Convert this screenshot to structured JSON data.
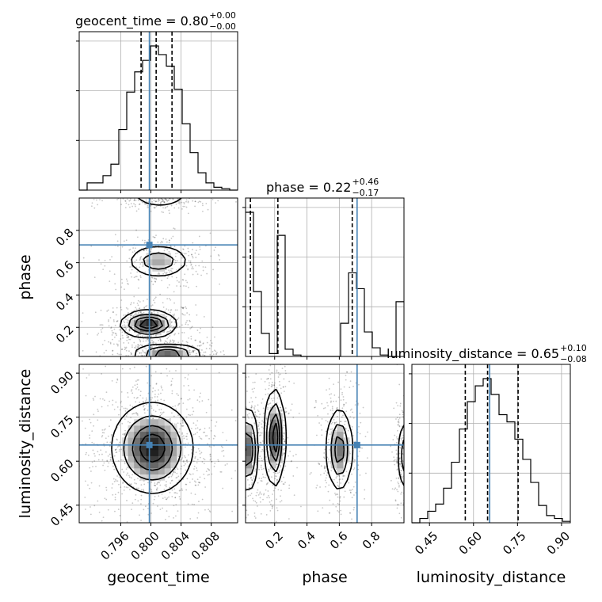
{
  "chart_data": {
    "type": "corner",
    "truth_color": "#4682b4",
    "params": [
      {
        "name": "geocent_time",
        "title_name": "geocent_time",
        "title_value": "0.80",
        "title_plus": "+0.00",
        "title_minus": "−0.00",
        "range": [
          0.7905,
          0.8115
        ],
        "ticks": [
          0.796,
          0.8,
          0.804,
          0.808
        ],
        "tick_labels": [
          "0.796",
          "0.800",
          "0.804",
          "0.808"
        ],
        "truth": 0.7998,
        "quantiles": [
          0.7987,
          0.8007,
          0.8028
        ],
        "hist": {
          "edges_start": 0.7905,
          "bin_width": 0.00105,
          "counts": [
            0,
            0.05,
            0.05,
            0.1,
            0.18,
            0.42,
            0.68,
            0.82,
            0.9,
            1.0,
            0.94,
            0.86,
            0.7,
            0.46,
            0.26,
            0.12,
            0.05,
            0.02,
            0.01,
            0
          ]
        }
      },
      {
        "name": "phase",
        "title_name": "phase",
        "title_value": "0.22",
        "title_plus": "+0.46",
        "title_minus": "−0.17",
        "range": [
          0.02,
          1.0
        ],
        "ticks": [
          0.2,
          0.4,
          0.6,
          0.8
        ],
        "tick_labels": [
          "0.2",
          "0.4",
          "0.6",
          "0.8"
        ],
        "truth": 0.71,
        "quantiles": [
          0.05,
          0.22,
          0.68
        ],
        "hist": {
          "edges_start": 0.02,
          "bin_width": 0.049,
          "counts": [
            1.0,
            0.45,
            0.16,
            0.02,
            0.84,
            0.05,
            0.01,
            0.0,
            0.0,
            0.0,
            0.0,
            0.0,
            0.23,
            0.58,
            0.47,
            0.17,
            0.06,
            0.01,
            0.0,
            0.38
          ]
        }
      },
      {
        "name": "luminosity_distance",
        "title_name": "luminosity_distance",
        "title_value": "0.65",
        "title_plus": "+0.10",
        "title_minus": "−0.08",
        "range": [
          0.39,
          0.93
        ],
        "ticks": [
          0.45,
          0.6,
          0.75,
          0.9
        ],
        "tick_labels": [
          "0.45",
          "0.60",
          "0.75",
          "0.90"
        ],
        "truth": 0.655,
        "quantiles": [
          0.572,
          0.648,
          0.752
        ],
        "hist": {
          "edges_start": 0.39,
          "bin_width": 0.027,
          "counts": [
            0,
            0.03,
            0.08,
            0.13,
            0.24,
            0.42,
            0.65,
            0.84,
            0.95,
            1.0,
            0.89,
            0.75,
            0.7,
            0.58,
            0.44,
            0.28,
            0.12,
            0.05,
            0.03,
            0.01
          ]
        }
      }
    ],
    "pair_ticks_y": {
      "phase": [
        "0.2",
        "0.4",
        "0.6",
        "0.8"
      ],
      "luminosity_distance": [
        "0.45",
        "0.60",
        "0.75",
        "0.90"
      ]
    },
    "density_modes": {
      "phase_vs_geocent_time": [
        {
          "x": 0.7997,
          "y": 0.22,
          "sx": 0.0018,
          "sy": 0.04,
          "w": 1.0
        },
        {
          "x": 0.801,
          "y": 0.61,
          "sx": 0.002,
          "sy": 0.05,
          "w": 0.55
        },
        {
          "x": 0.8022,
          "y": 0.035,
          "sx": 0.0022,
          "sy": 0.03,
          "w": 0.85
        },
        {
          "x": 0.8012,
          "y": 0.99,
          "sx": 0.002,
          "sy": 0.02,
          "w": 0.35
        }
      ],
      "luminosity_distance_vs_geocent_time": [
        {
          "x": 0.8002,
          "y": 0.645,
          "sx": 0.0026,
          "sy": 0.075,
          "w": 1.0
        }
      ],
      "luminosity_distance_vs_phase": [
        {
          "x": 0.035,
          "y": 0.64,
          "sx": 0.03,
          "sy": 0.07,
          "w": 0.9
        },
        {
          "x": 0.2,
          "y": 0.68,
          "sx": 0.03,
          "sy": 0.08,
          "w": 1.0
        },
        {
          "x": 0.6,
          "y": 0.64,
          "sx": 0.04,
          "sy": 0.07,
          "w": 0.75
        },
        {
          "x": 1.0,
          "y": 0.62,
          "sx": 0.02,
          "sy": 0.06,
          "w": 0.5
        }
      ]
    }
  }
}
